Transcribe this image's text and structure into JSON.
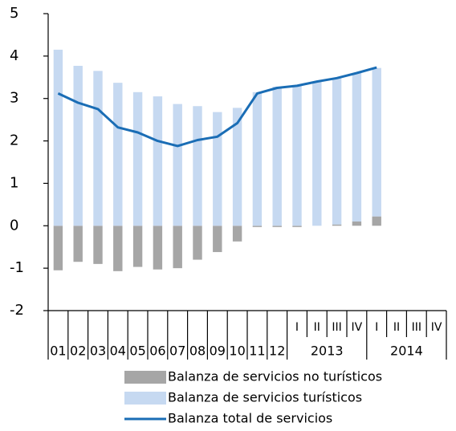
{
  "chart_data": {
    "type": "bar",
    "categories": [
      "01",
      "02",
      "03",
      "04",
      "05",
      "06",
      "07",
      "08",
      "09",
      "10",
      "11",
      "12",
      "I",
      "II",
      "III",
      "IV",
      "I",
      "II",
      "III",
      "IV"
    ],
    "x_groups": [
      "2013",
      "2014"
    ],
    "series": [
      {
        "name": "Balanza de servicios no turísticos",
        "type": "bar",
        "color": "#a6a6a6",
        "values": [
          -1.05,
          -0.85,
          -0.9,
          -1.07,
          -0.97,
          -1.03,
          -1.0,
          -0.8,
          -0.62,
          -0.37,
          -0.03,
          -0.03,
          -0.03,
          0.0,
          0.03,
          0.1,
          0.22,
          null,
          null,
          null
        ]
      },
      {
        "name": "Balanza de servicios turísticos",
        "type": "bar",
        "color": "#c6d9f1",
        "values": [
          4.15,
          3.77,
          3.65,
          3.37,
          3.15,
          3.05,
          2.87,
          2.82,
          2.68,
          2.78,
          3.15,
          3.28,
          3.32,
          3.4,
          3.45,
          3.5,
          3.5,
          null,
          null,
          null
        ]
      },
      {
        "name": "Balanza total de servicios",
        "type": "line",
        "color": "#1a6db5",
        "values": [
          3.12,
          2.9,
          2.75,
          2.32,
          2.2,
          2.0,
          1.88,
          2.02,
          2.1,
          2.42,
          3.12,
          3.25,
          3.3,
          3.4,
          3.48,
          3.6,
          3.73,
          null,
          null,
          null
        ]
      }
    ],
    "ylim": [
      -2,
      5
    ],
    "yticks": [
      -2,
      -1,
      0,
      1,
      2,
      3,
      4,
      5
    ],
    "grid": false,
    "legend": "bottom"
  }
}
